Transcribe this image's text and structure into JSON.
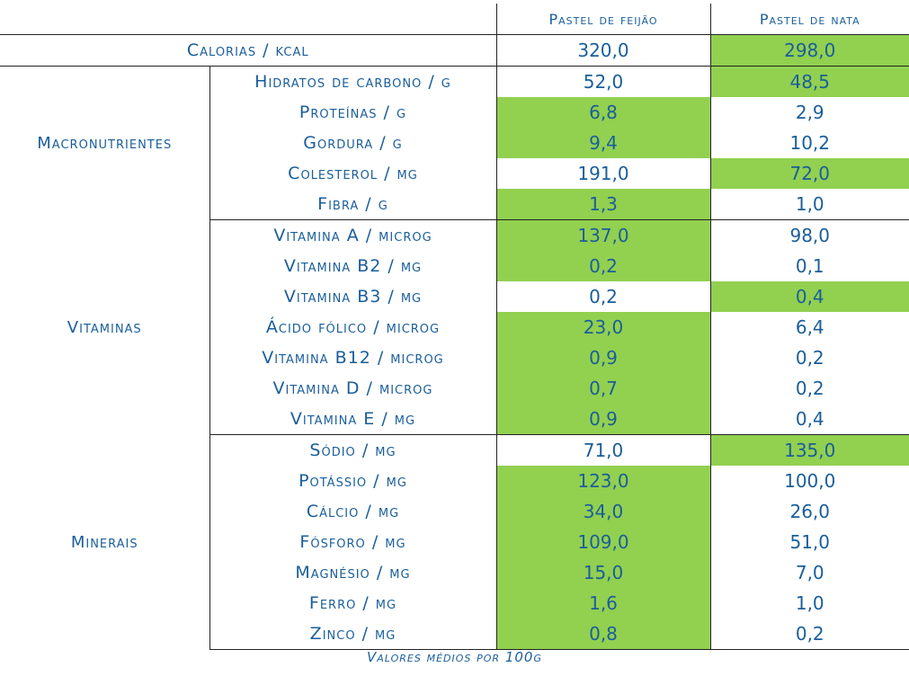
{
  "headers": {
    "col1": "Pastel de feijão",
    "col2": "Pastel de nata"
  },
  "calories": {
    "label": "Calorias / kcal",
    "v1": "320,0",
    "v2": "298,0",
    "hl": 2
  },
  "groups": {
    "macro": "Macronutrientes",
    "vit": "Vitaminas",
    "min": "Minerais"
  },
  "macro": [
    {
      "label": "Hidratos de carbono / g",
      "v1": "52,0",
      "v2": "48,5",
      "hl": 2
    },
    {
      "label": "Proteínas / g",
      "v1": "6,8",
      "v2": "2,9",
      "hl": 1
    },
    {
      "label": "Gordura / g",
      "v1": "9,4",
      "v2": "10,2",
      "hl": 1
    },
    {
      "label": "Colesterol / mg",
      "v1": "191,0",
      "v2": "72,0",
      "hl": 2
    },
    {
      "label": "Fibra / g",
      "v1": "1,3",
      "v2": "1,0",
      "hl": 1
    }
  ],
  "vit": [
    {
      "label": "Vitamina A / microg",
      "v1": "137,0",
      "v2": "98,0",
      "hl": 1
    },
    {
      "label": "Vitamina B2 / mg",
      "v1": "0,2",
      "v2": "0,1",
      "hl": 1
    },
    {
      "label": "Vitamina B3 / mg",
      "v1": "0,2",
      "v2": "0,4",
      "hl": 2
    },
    {
      "label": "Ácido fólico / microg",
      "v1": "23,0",
      "v2": "6,4",
      "hl": 1
    },
    {
      "label": "Vitamina B12 / microg",
      "v1": "0,9",
      "v2": "0,2",
      "hl": 1
    },
    {
      "label": "Vitamina D / microg",
      "v1": "0,7",
      "v2": "0,2",
      "hl": 1
    },
    {
      "label": "Vitamina E / mg",
      "v1": "0,9",
      "v2": "0,4",
      "hl": 1
    }
  ],
  "min": [
    {
      "label": "Sódio / mg",
      "v1": "71,0",
      "v2": "135,0",
      "hl": 2
    },
    {
      "label": "Potássio / mg",
      "v1": "123,0",
      "v2": "100,0",
      "hl": 1
    },
    {
      "label": "Cálcio / mg",
      "v1": "34,0",
      "v2": "26,0",
      "hl": 1
    },
    {
      "label": "Fósforo / mg",
      "v1": "109,0",
      "v2": "51,0",
      "hl": 1
    },
    {
      "label": "Magnésio / mg",
      "v1": "15,0",
      "v2": "7,0",
      "hl": 1
    },
    {
      "label": "Ferro / mg",
      "v1": "1,6",
      "v2": "1,0",
      "hl": 1
    },
    {
      "label": "Zinco / mg",
      "v1": "0,8",
      "v2": "0,2",
      "hl": 1
    }
  ],
  "colors": {
    "highlight": "#92d050",
    "text": "#1a5e9a",
    "rule": "#222222"
  },
  "note": "Valores médios por 100g"
}
